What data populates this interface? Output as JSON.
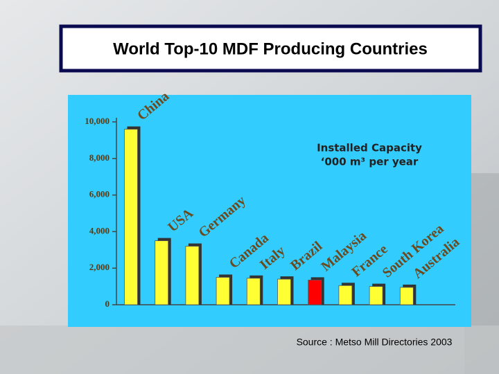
{
  "chart_data": {
    "type": "bar",
    "title": "World Top-10 MDF Producing Countries",
    "annotation": [
      "Installed Capacity",
      "‘000 m³ per year"
    ],
    "source": "Source : Metso Mill Directories 2003",
    "categories": [
      "China",
      "USA",
      "Germany",
      "Canada",
      "Italy",
      "Brazil",
      "Malaysia",
      "France",
      "South Korea",
      "Australia"
    ],
    "values": [
      9600,
      3500,
      3200,
      1500,
      1450,
      1400,
      1350,
      1050,
      1000,
      950
    ],
    "colors": [
      "#ffff33",
      "#ffff33",
      "#ffff33",
      "#ffff33",
      "#ffff33",
      "#ffff33",
      "#ff0000",
      "#ffff33",
      "#ffff33",
      "#ffff33"
    ],
    "ylim": [
      0,
      10000
    ],
    "yticks": [
      0,
      {
        "value": 2000,
        "label": "2,000"
      },
      {
        "value": 4000,
        "label": "4,000"
      },
      {
        "value": 6000,
        "label": "6,000"
      },
      {
        "value": 8000,
        "label": "8,000"
      },
      {
        "value": 10000,
        "label": "10,000"
      }
    ],
    "grid": false
  }
}
